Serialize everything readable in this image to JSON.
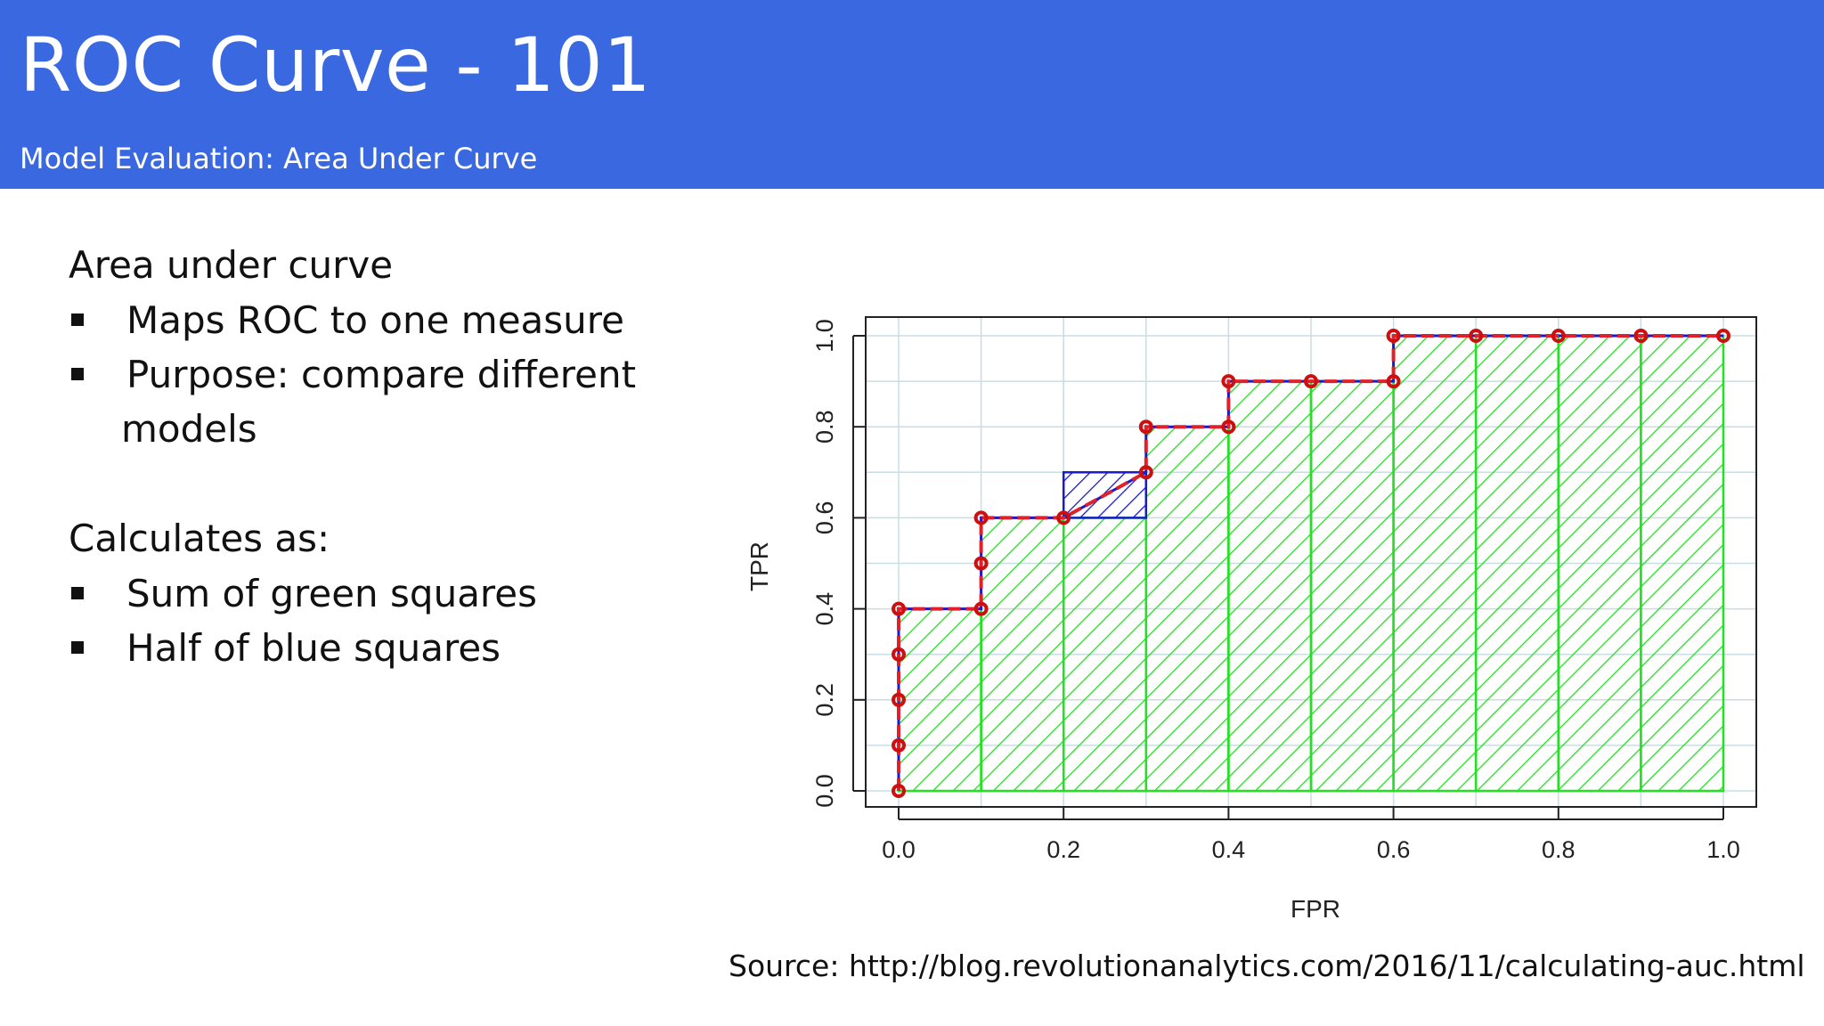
{
  "header": {
    "title": "ROC Curve - 101",
    "subtitle": "Model Evaluation: Area Under Curve"
  },
  "content": {
    "section1_heading": "Area under curve",
    "section1_bullets": [
      "Maps ROC to one measure",
      "Purpose: compare different",
      "models"
    ],
    "section2_heading": "Calculates as:",
    "section2_bullets": [
      "Sum of green squares",
      "Half of blue squares"
    ]
  },
  "source": "Source: http://blog.revolutionanalytics.com/2016/11/calculating-auc.html",
  "colors": {
    "header_bg": "#3a68e0",
    "curve": "#e0202a",
    "green_area": "#22e022",
    "blue_area": "#1a1acc",
    "point": "#cc1010"
  },
  "chart_data": {
    "type": "line",
    "title": "",
    "xlabel": "FPR",
    "ylabel": "TPR",
    "xlim": [
      0,
      1
    ],
    "ylim": [
      0,
      1
    ],
    "x_ticks": [
      "0.0",
      "0.2",
      "0.4",
      "0.6",
      "0.8",
      "1.0"
    ],
    "y_ticks": [
      "0.0",
      "0.2",
      "0.4",
      "0.6",
      "0.8",
      "1.0"
    ],
    "grid": true,
    "series": [
      {
        "points": [
          [
            0.0,
            0.0
          ],
          [
            0.0,
            0.1
          ],
          [
            0.0,
            0.2
          ],
          [
            0.0,
            0.3
          ],
          [
            0.0,
            0.4
          ],
          [
            0.1,
            0.4
          ],
          [
            0.1,
            0.5
          ],
          [
            0.1,
            0.6
          ],
          [
            0.2,
            0.6
          ],
          [
            0.3,
            0.7
          ],
          [
            0.3,
            0.8
          ],
          [
            0.4,
            0.8
          ],
          [
            0.4,
            0.9
          ],
          [
            0.5,
            0.9
          ],
          [
            0.6,
            0.9
          ],
          [
            0.6,
            1.0
          ],
          [
            0.7,
            1.0
          ],
          [
            0.8,
            1.0
          ],
          [
            0.9,
            1.0
          ],
          [
            1.0,
            1.0
          ]
        ]
      }
    ],
    "green_squares": [
      {
        "x0": 0.0,
        "x1": 0.1,
        "h": 0.4
      },
      {
        "x0": 0.1,
        "x1": 0.2,
        "h": 0.6
      },
      {
        "x0": 0.2,
        "x1": 0.3,
        "h": 0.6
      },
      {
        "x0": 0.3,
        "x1": 0.4,
        "h": 0.8
      },
      {
        "x0": 0.4,
        "x1": 0.5,
        "h": 0.9
      },
      {
        "x0": 0.5,
        "x1": 0.6,
        "h": 0.9
      },
      {
        "x0": 0.6,
        "x1": 0.7,
        "h": 1.0
      },
      {
        "x0": 0.7,
        "x1": 0.8,
        "h": 1.0
      },
      {
        "x0": 0.8,
        "x1": 0.9,
        "h": 1.0
      },
      {
        "x0": 0.9,
        "x1": 1.0,
        "h": 1.0
      }
    ],
    "blue_squares": [
      {
        "x0": 0.2,
        "x1": 0.3,
        "y0": 0.6,
        "y1": 0.7
      }
    ]
  }
}
